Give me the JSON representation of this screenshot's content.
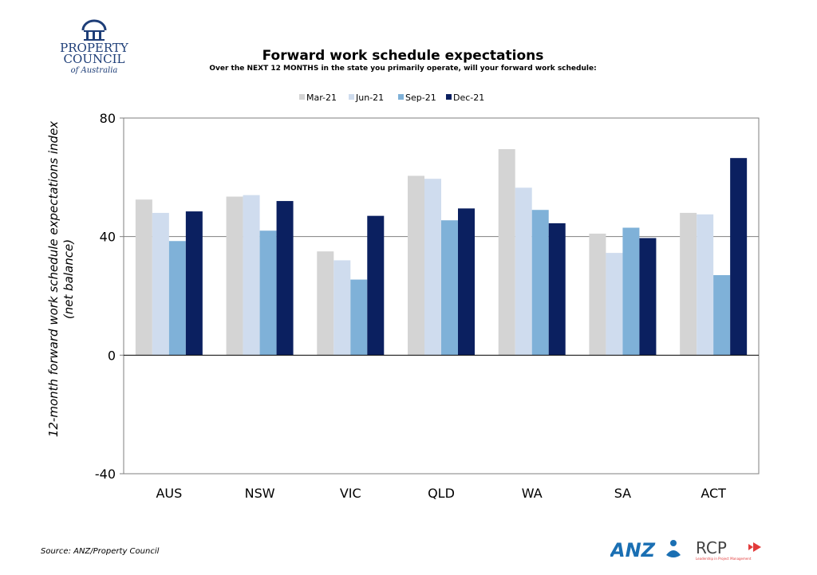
{
  "logos": {
    "property_council": {
      "line1": "PROPERTY",
      "line2": "COUNCIL",
      "line3": "of Australia"
    },
    "anz": "ANZ",
    "rcp": "RCP",
    "rcp_tagline": "Leadership in Project Management"
  },
  "colors": {
    "Mar-21": "#d4d4d4",
    "Jun-21": "#cfdcee",
    "Sep-21": "#7fb1d8",
    "Dec-21": "#0b2060",
    "anz_blue": "#1a6fb3",
    "rcp_red": "#e23b3b"
  },
  "chart_data": {
    "type": "bar",
    "title": "Forward work schedule expectations",
    "subtitle": "Over the NEXT 12 MONTHS in the state you primarily operate, will your forward work schedule:",
    "ylabel_line1": "12-month forward work schedule expectations index",
    "ylabel_line2": "(net balance)",
    "xlabel": "",
    "ylim": [
      -40,
      80
    ],
    "yticks": [
      -40,
      0,
      40,
      80
    ],
    "gridlines": [
      40
    ],
    "legend_position": "top-center",
    "categories": [
      "AUS",
      "NSW",
      "VIC",
      "QLD",
      "WA",
      "SA",
      "ACT"
    ],
    "series": [
      {
        "name": "Mar-21",
        "values": [
          52.5,
          53.5,
          35,
          60.5,
          69.5,
          41,
          48
        ]
      },
      {
        "name": "Jun-21",
        "values": [
          48,
          54,
          32,
          59.5,
          56.5,
          34.5,
          47.5
        ]
      },
      {
        "name": "Sep-21",
        "values": [
          38.5,
          42,
          25.5,
          45.5,
          49,
          43,
          27
        ]
      },
      {
        "name": "Dec-21",
        "values": [
          48.5,
          52,
          47,
          49.5,
          44.5,
          39.5,
          66.5
        ]
      }
    ]
  },
  "source": "Source: ANZ/Property Council"
}
